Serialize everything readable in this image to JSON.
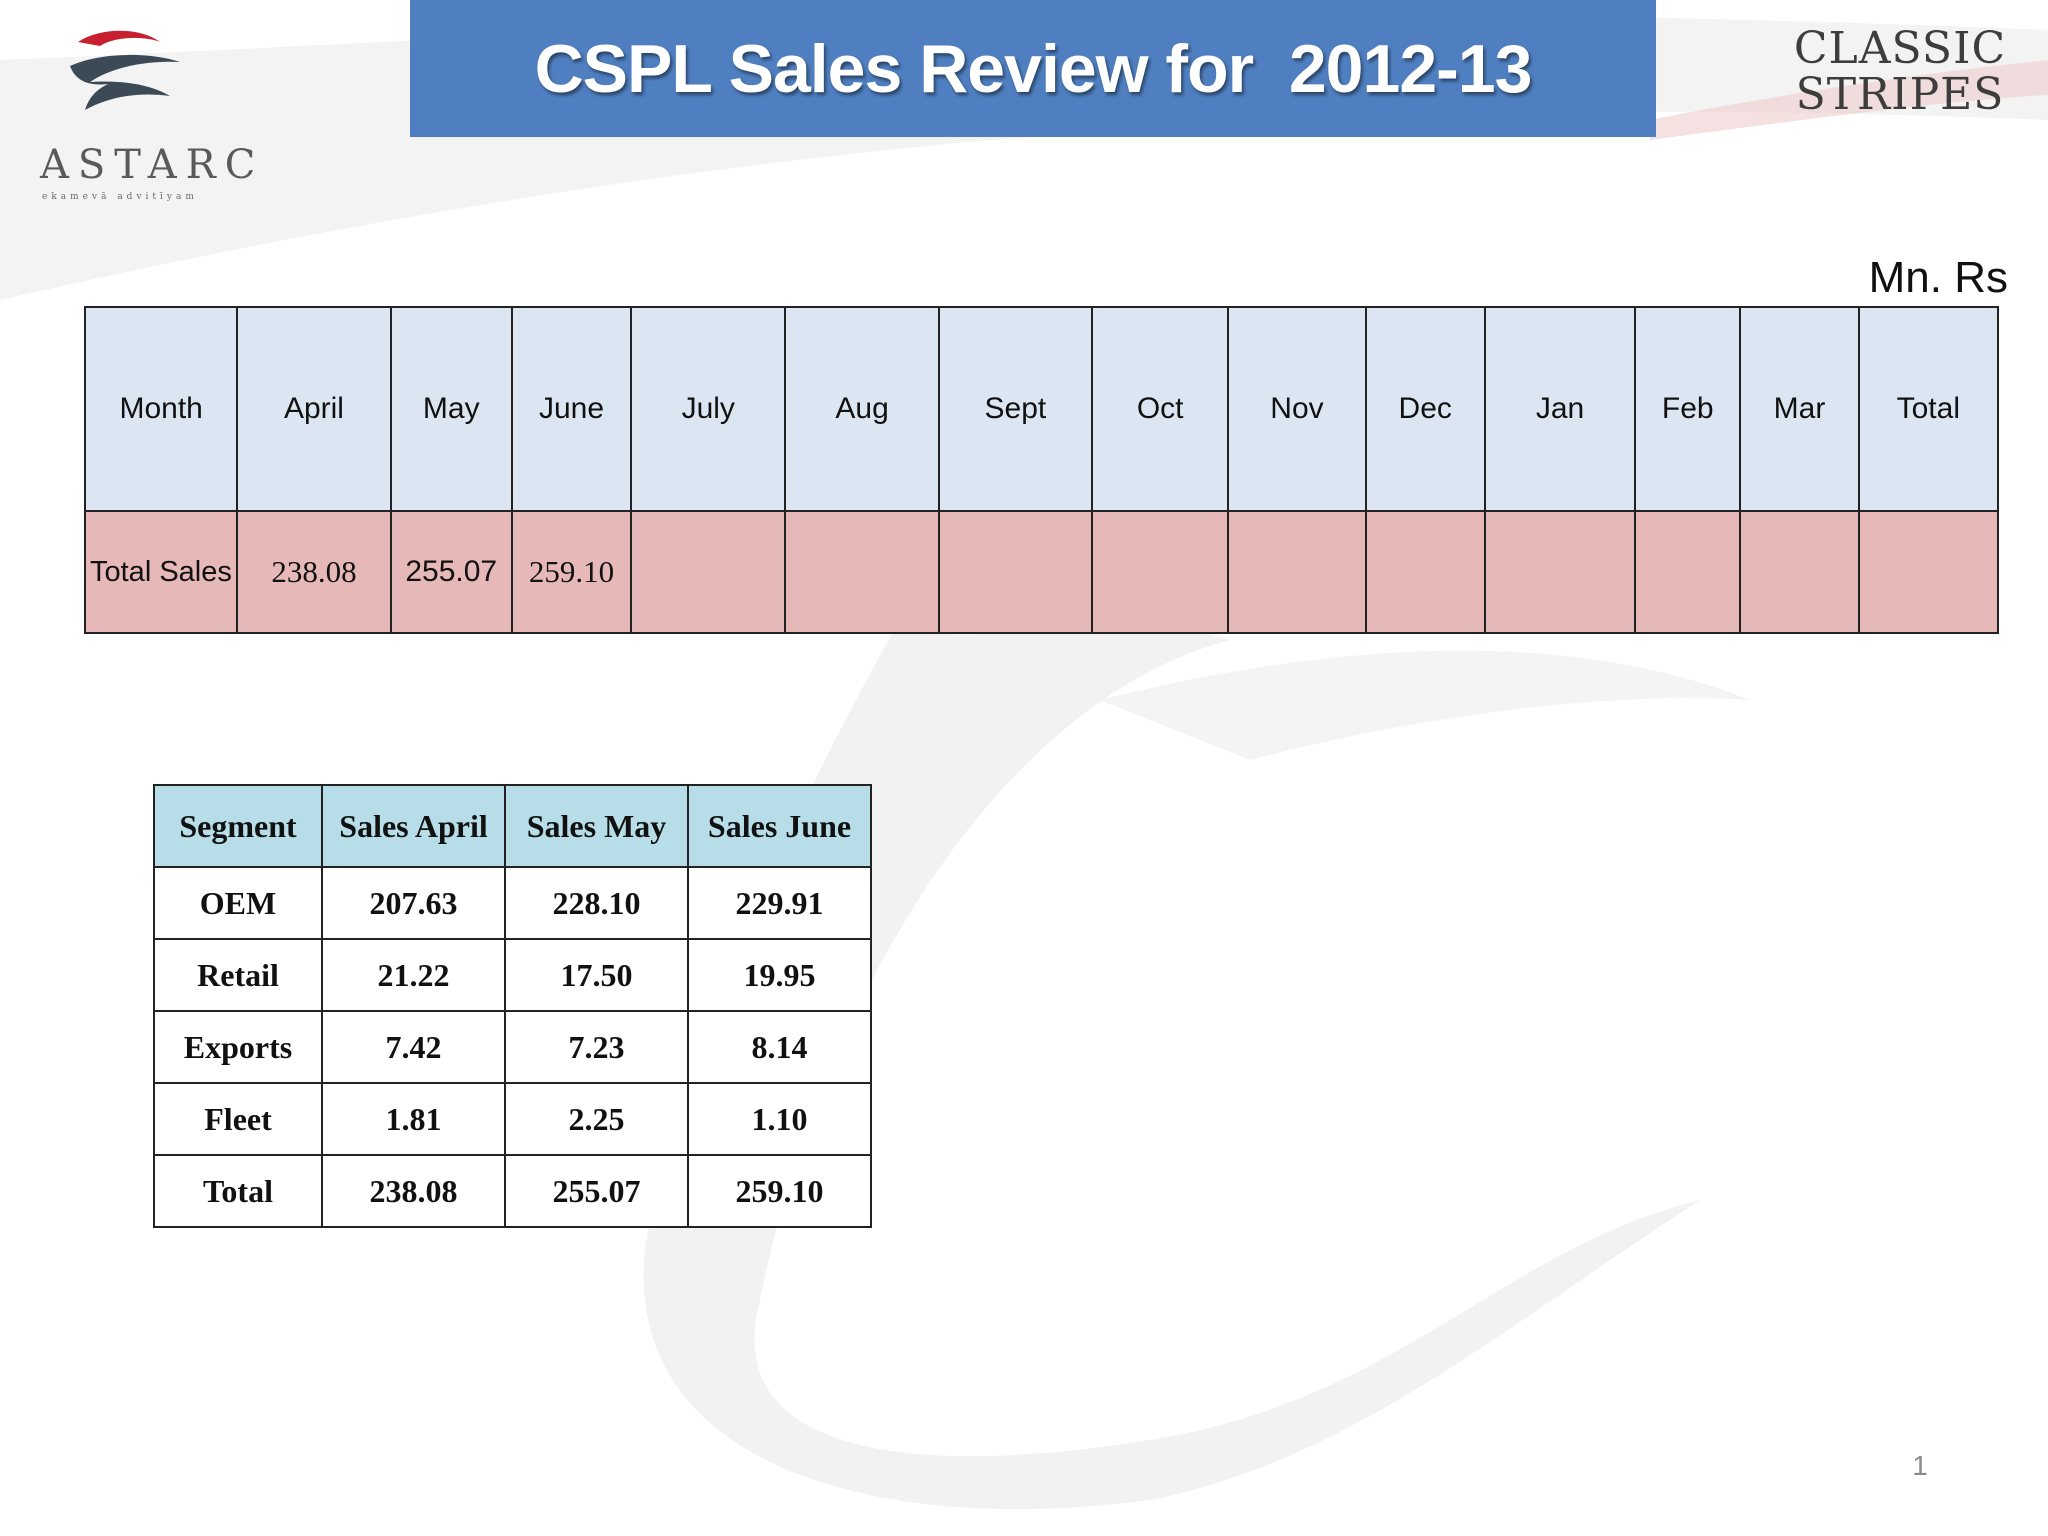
{
  "header": {
    "title": "CSPL Sales Review for  2012-13",
    "logo_left": {
      "name": "ASTARC",
      "tagline": "ekamevā advitīyam"
    },
    "logo_right": [
      "CLASSIC",
      "STRIPES"
    ]
  },
  "unit": "Mn. Rs",
  "monthly_table": {
    "headers": [
      "Month",
      "April",
      "May",
      "June",
      "July",
      "Aug",
      "Sept",
      "Oct",
      "Nov",
      "Dec",
      "Jan",
      "Feb",
      "Mar",
      "Total"
    ],
    "row": [
      "Total Sales",
      "238.08",
      "255.07",
      "259.10",
      "",
      "",
      "",
      "",
      "",
      "",
      "",
      "",
      "",
      ""
    ]
  },
  "segment_table": {
    "headers": [
      "Segment",
      "Sales April",
      "Sales May",
      "Sales June"
    ],
    "rows": [
      [
        "OEM",
        "207.63",
        "228.10",
        "229.91"
      ],
      [
        "Retail",
        "21.22",
        "17.50",
        "19.95"
      ],
      [
        "Exports",
        "7.42",
        "7.23",
        "8.14"
      ],
      [
        "Fleet",
        "1.81",
        "2.25",
        "1.10"
      ],
      [
        "Total",
        "238.08",
        "255.07",
        "259.10"
      ]
    ]
  },
  "page_number": "1",
  "colors": {
    "title_bar": "#4f7fc0",
    "month_header_bg": "#dce6f2",
    "sales_row_bg": "#e6b9b8",
    "segment_header_bg": "#b7dee8",
    "logo_accent_red": "#c8202f"
  }
}
